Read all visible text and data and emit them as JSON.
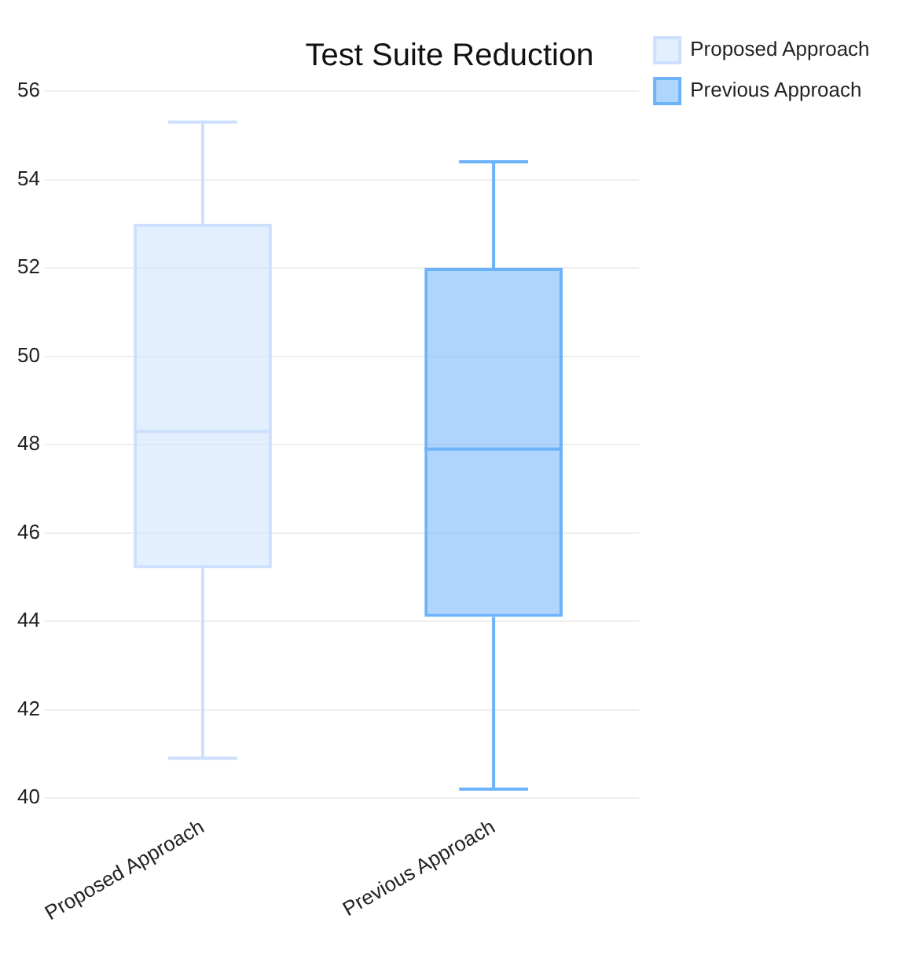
{
  "chart_data": {
    "type": "box",
    "title": "Test Suite Reduction",
    "categories": [
      "Proposed Approach",
      "Previous Approach"
    ],
    "series": [
      {
        "name": "Proposed Approach",
        "color": "#cce0fd",
        "boxes": [
          {
            "low": 40.9,
            "q1": 45.2,
            "median": 48.3,
            "q3": 53.0,
            "high": 55.3
          },
          null
        ]
      },
      {
        "name": "Previous Approach",
        "color": "#6db3fa",
        "boxes": [
          null,
          {
            "low": 40.2,
            "q1": 44.1,
            "median": 47.9,
            "q3": 52.0,
            "high": 54.4
          }
        ]
      }
    ],
    "ylim": [
      40,
      56
    ],
    "yticks": [
      40,
      42,
      44,
      46,
      48,
      50,
      52,
      54,
      56
    ],
    "grid": "y",
    "legend": "top right"
  }
}
